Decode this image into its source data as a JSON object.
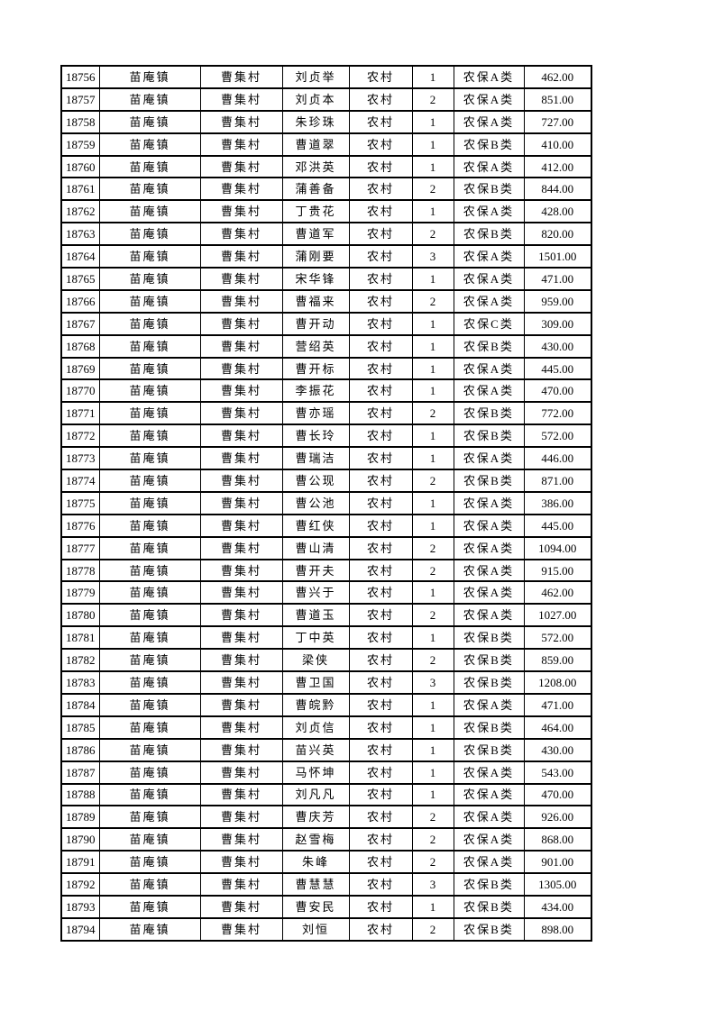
{
  "colors": {
    "page_background": "#ffffff",
    "table_border": "#000000",
    "text": "#000000"
  },
  "table": {
    "column_keys": [
      "id",
      "town",
      "village",
      "person",
      "residence",
      "count",
      "category",
      "amount"
    ],
    "rows": [
      {
        "id": "18756",
        "town": "苗庵镇",
        "village": "曹集村",
        "person": "刘贞举",
        "residence": "农村",
        "count": "1",
        "category": "农保A类",
        "amount": "462.00"
      },
      {
        "id": "18757",
        "town": "苗庵镇",
        "village": "曹集村",
        "person": "刘贞本",
        "residence": "农村",
        "count": "2",
        "category": "农保A类",
        "amount": "851.00"
      },
      {
        "id": "18758",
        "town": "苗庵镇",
        "village": "曹集村",
        "person": "朱珍珠",
        "residence": "农村",
        "count": "1",
        "category": "农保A类",
        "amount": "727.00"
      },
      {
        "id": "18759",
        "town": "苗庵镇",
        "village": "曹集村",
        "person": "曹道翠",
        "residence": "农村",
        "count": "1",
        "category": "农保B类",
        "amount": "410.00"
      },
      {
        "id": "18760",
        "town": "苗庵镇",
        "village": "曹集村",
        "person": "邓洪英",
        "residence": "农村",
        "count": "1",
        "category": "农保A类",
        "amount": "412.00"
      },
      {
        "id": "18761",
        "town": "苗庵镇",
        "village": "曹集村",
        "person": "蒲善备",
        "residence": "农村",
        "count": "2",
        "category": "农保B类",
        "amount": "844.00"
      },
      {
        "id": "18762",
        "town": "苗庵镇",
        "village": "曹集村",
        "person": "丁贵花",
        "residence": "农村",
        "count": "1",
        "category": "农保A类",
        "amount": "428.00"
      },
      {
        "id": "18763",
        "town": "苗庵镇",
        "village": "曹集村",
        "person": "曹道军",
        "residence": "农村",
        "count": "2",
        "category": "农保B类",
        "amount": "820.00"
      },
      {
        "id": "18764",
        "town": "苗庵镇",
        "village": "曹集村",
        "person": "蒲刚要",
        "residence": "农村",
        "count": "3",
        "category": "农保A类",
        "amount": "1501.00"
      },
      {
        "id": "18765",
        "town": "苗庵镇",
        "village": "曹集村",
        "person": "宋华锋",
        "residence": "农村",
        "count": "1",
        "category": "农保A类",
        "amount": "471.00"
      },
      {
        "id": "18766",
        "town": "苗庵镇",
        "village": "曹集村",
        "person": "曹福来",
        "residence": "农村",
        "count": "2",
        "category": "农保A类",
        "amount": "959.00"
      },
      {
        "id": "18767",
        "town": "苗庵镇",
        "village": "曹集村",
        "person": "曹开动",
        "residence": "农村",
        "count": "1",
        "category": "农保C类",
        "amount": "309.00"
      },
      {
        "id": "18768",
        "town": "苗庵镇",
        "village": "曹集村",
        "person": "营绍英",
        "residence": "农村",
        "count": "1",
        "category": "农保B类",
        "amount": "430.00"
      },
      {
        "id": "18769",
        "town": "苗庵镇",
        "village": "曹集村",
        "person": "曹开标",
        "residence": "农村",
        "count": "1",
        "category": "农保A类",
        "amount": "445.00"
      },
      {
        "id": "18770",
        "town": "苗庵镇",
        "village": "曹集村",
        "person": "李振花",
        "residence": "农村",
        "count": "1",
        "category": "农保A类",
        "amount": "470.00"
      },
      {
        "id": "18771",
        "town": "苗庵镇",
        "village": "曹集村",
        "person": "曹亦瑶",
        "residence": "农村",
        "count": "2",
        "category": "农保B类",
        "amount": "772.00"
      },
      {
        "id": "18772",
        "town": "苗庵镇",
        "village": "曹集村",
        "person": "曹长玲",
        "residence": "农村",
        "count": "1",
        "category": "农保B类",
        "amount": "572.00"
      },
      {
        "id": "18773",
        "town": "苗庵镇",
        "village": "曹集村",
        "person": "曹瑞洁",
        "residence": "农村",
        "count": "1",
        "category": "农保A类",
        "amount": "446.00"
      },
      {
        "id": "18774",
        "town": "苗庵镇",
        "village": "曹集村",
        "person": "曹公现",
        "residence": "农村",
        "count": "2",
        "category": "农保B类",
        "amount": "871.00"
      },
      {
        "id": "18775",
        "town": "苗庵镇",
        "village": "曹集村",
        "person": "曹公池",
        "residence": "农村",
        "count": "1",
        "category": "农保A类",
        "amount": "386.00"
      },
      {
        "id": "18776",
        "town": "苗庵镇",
        "village": "曹集村",
        "person": "曹红侠",
        "residence": "农村",
        "count": "1",
        "category": "农保A类",
        "amount": "445.00"
      },
      {
        "id": "18777",
        "town": "苗庵镇",
        "village": "曹集村",
        "person": "曹山清",
        "residence": "农村",
        "count": "2",
        "category": "农保A类",
        "amount": "1094.00"
      },
      {
        "id": "18778",
        "town": "苗庵镇",
        "village": "曹集村",
        "person": "曹开夫",
        "residence": "农村",
        "count": "2",
        "category": "农保A类",
        "amount": "915.00"
      },
      {
        "id": "18779",
        "town": "苗庵镇",
        "village": "曹集村",
        "person": "曹兴于",
        "residence": "农村",
        "count": "1",
        "category": "农保A类",
        "amount": "462.00"
      },
      {
        "id": "18780",
        "town": "苗庵镇",
        "village": "曹集村",
        "person": "曹道玉",
        "residence": "农村",
        "count": "2",
        "category": "农保A类",
        "amount": "1027.00"
      },
      {
        "id": "18781",
        "town": "苗庵镇",
        "village": "曹集村",
        "person": "丁中英",
        "residence": "农村",
        "count": "1",
        "category": "农保B类",
        "amount": "572.00"
      },
      {
        "id": "18782",
        "town": "苗庵镇",
        "village": "曹集村",
        "person": "梁侠",
        "residence": "农村",
        "count": "2",
        "category": "农保B类",
        "amount": "859.00"
      },
      {
        "id": "18783",
        "town": "苗庵镇",
        "village": "曹集村",
        "person": "曹卫国",
        "residence": "农村",
        "count": "3",
        "category": "农保B类",
        "amount": "1208.00"
      },
      {
        "id": "18784",
        "town": "苗庵镇",
        "village": "曹集村",
        "person": "曹皖黔",
        "residence": "农村",
        "count": "1",
        "category": "农保A类",
        "amount": "471.00"
      },
      {
        "id": "18785",
        "town": "苗庵镇",
        "village": "曹集村",
        "person": "刘贞信",
        "residence": "农村",
        "count": "1",
        "category": "农保B类",
        "amount": "464.00"
      },
      {
        "id": "18786",
        "town": "苗庵镇",
        "village": "曹集村",
        "person": "苗兴英",
        "residence": "农村",
        "count": "1",
        "category": "农保B类",
        "amount": "430.00"
      },
      {
        "id": "18787",
        "town": "苗庵镇",
        "village": "曹集村",
        "person": "马怀坤",
        "residence": "农村",
        "count": "1",
        "category": "农保A类",
        "amount": "543.00"
      },
      {
        "id": "18788",
        "town": "苗庵镇",
        "village": "曹集村",
        "person": "刘凡凡",
        "residence": "农村",
        "count": "1",
        "category": "农保A类",
        "amount": "470.00"
      },
      {
        "id": "18789",
        "town": "苗庵镇",
        "village": "曹集村",
        "person": "曹庆芳",
        "residence": "农村",
        "count": "2",
        "category": "农保A类",
        "amount": "926.00"
      },
      {
        "id": "18790",
        "town": "苗庵镇",
        "village": "曹集村",
        "person": "赵雪梅",
        "residence": "农村",
        "count": "2",
        "category": "农保A类",
        "amount": "868.00"
      },
      {
        "id": "18791",
        "town": "苗庵镇",
        "village": "曹集村",
        "person": "朱峰",
        "residence": "农村",
        "count": "2",
        "category": "农保A类",
        "amount": "901.00"
      },
      {
        "id": "18792",
        "town": "苗庵镇",
        "village": "曹集村",
        "person": "曹慧慧",
        "residence": "农村",
        "count": "3",
        "category": "农保B类",
        "amount": "1305.00"
      },
      {
        "id": "18793",
        "town": "苗庵镇",
        "village": "曹集村",
        "person": "曹安民",
        "residence": "农村",
        "count": "1",
        "category": "农保B类",
        "amount": "434.00"
      },
      {
        "id": "18794",
        "town": "苗庵镇",
        "village": "曹集村",
        "person": "刘恒",
        "residence": "农村",
        "count": "2",
        "category": "农保B类",
        "amount": "898.00"
      }
    ]
  }
}
